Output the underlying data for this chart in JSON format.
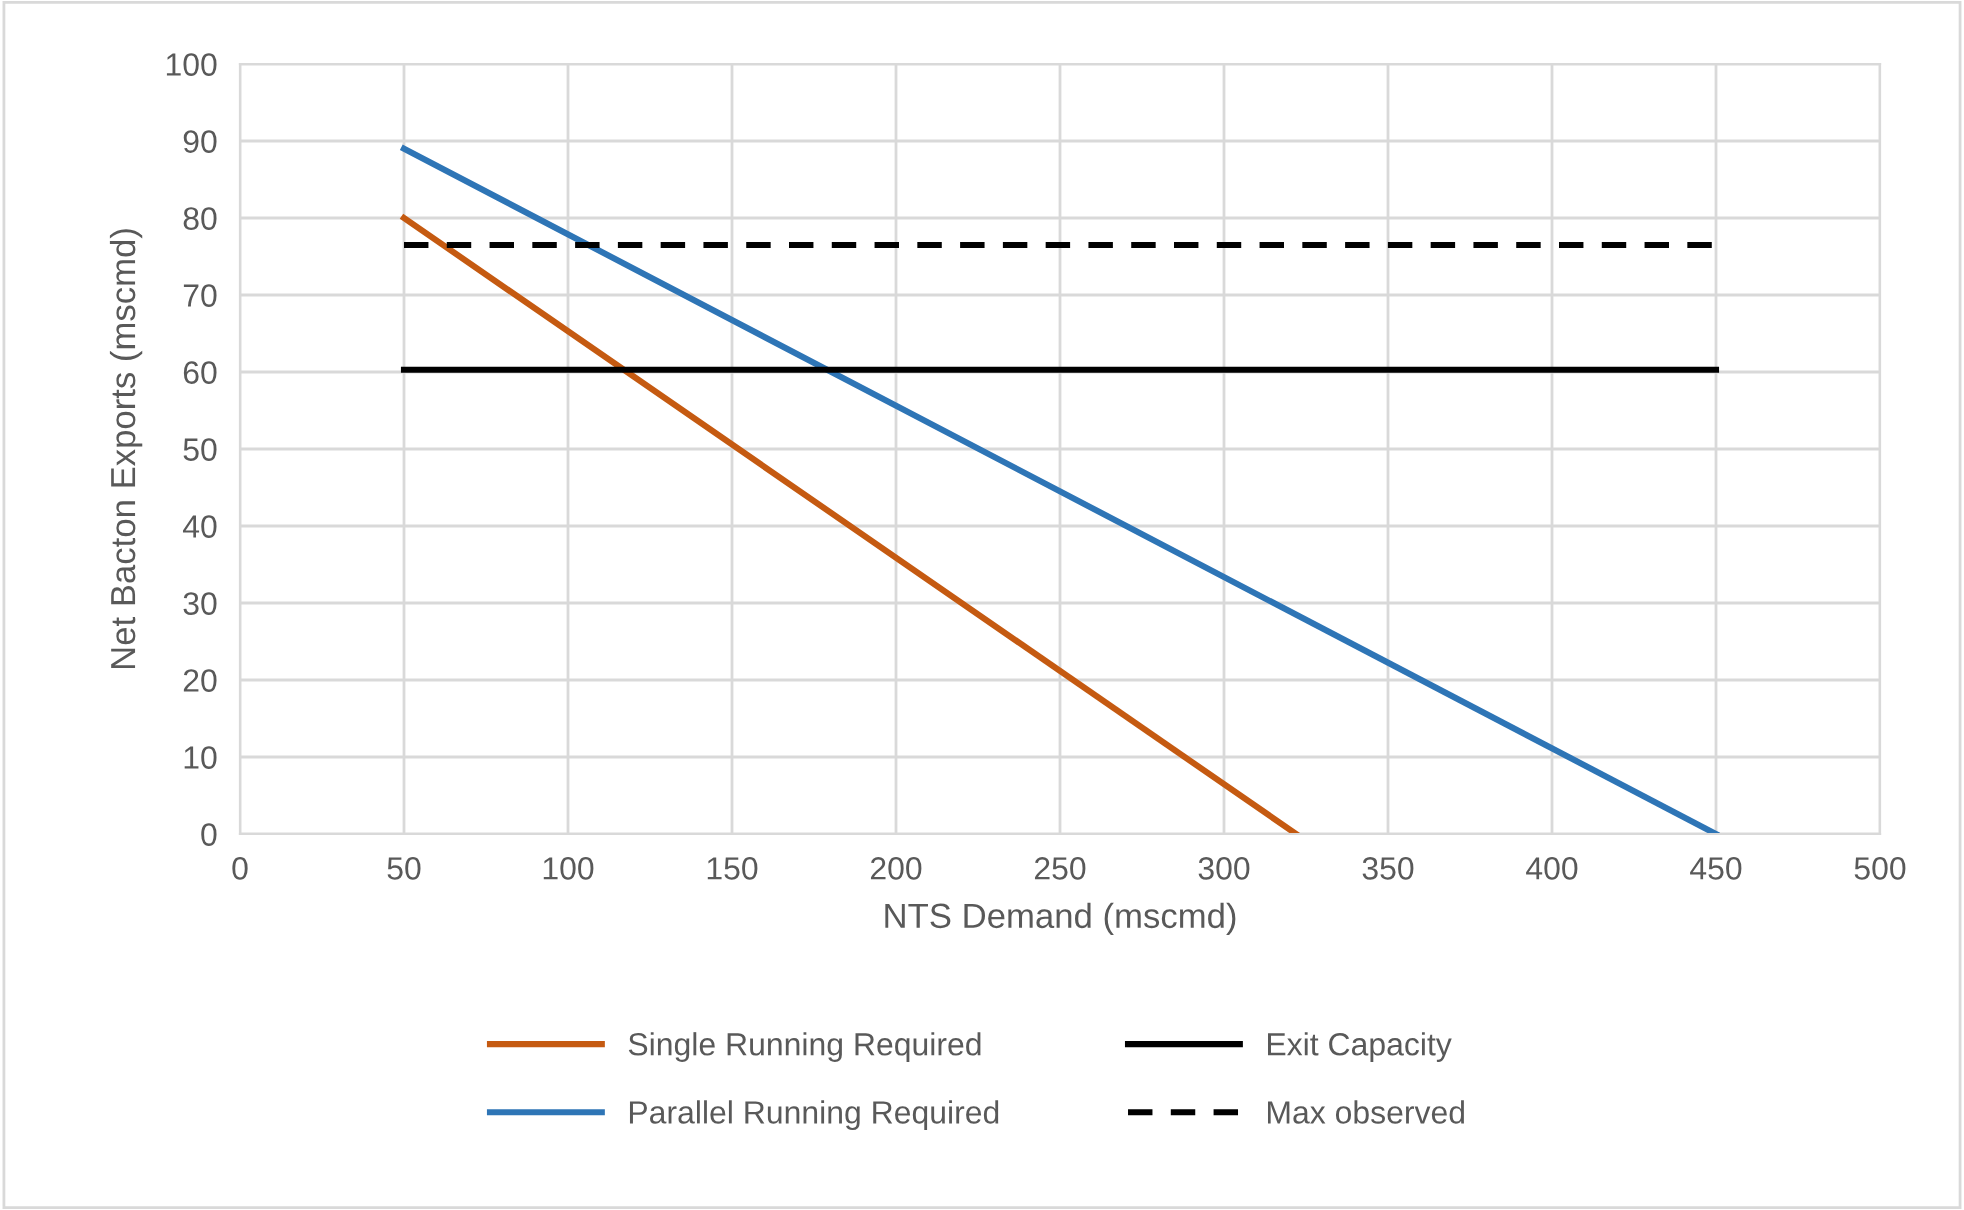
{
  "chart_data": {
    "type": "line",
    "xlabel": "NTS Demand (mscmd)",
    "ylabel": "Net Bacton Exports (mscmd)",
    "xlim": [
      0,
      500
    ],
    "xticks": [
      0,
      50,
      100,
      150,
      200,
      250,
      300,
      350,
      400,
      450,
      500
    ],
    "ylim": [
      0,
      100
    ],
    "yticks": [
      0,
      10,
      20,
      30,
      40,
      50,
      60,
      70,
      80,
      90,
      100
    ],
    "grid": true,
    "legend": "bottom",
    "marker": "none",
    "series": [
      {
        "name": "Single Running Required",
        "color": "#c55a11",
        "x": [
          50,
          322
        ],
        "values": [
          80,
          0
        ],
        "line_style": "solid"
      },
      {
        "name": "Parallel Running Required",
        "color": "#2e75b6",
        "x": [
          50,
          450
        ],
        "values": [
          89,
          0
        ],
        "line_style": "solid"
      },
      {
        "name": "Exit Capacity",
        "color": "#000000",
        "x": [
          50,
          450
        ],
        "values": [
          60.3,
          60.3
        ],
        "line_style": "solid"
      },
      {
        "name": "Max observed",
        "color": "#000000",
        "x": [
          50,
          450
        ],
        "values": [
          76.5,
          76.5
        ],
        "line_style": "dashed"
      }
    ]
  }
}
